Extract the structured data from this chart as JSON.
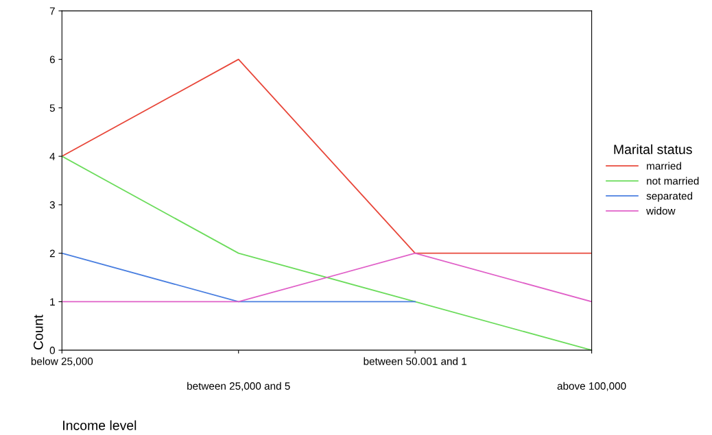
{
  "chart_data": {
    "type": "line",
    "xlabel": "Income level",
    "ylabel": "Count",
    "legend_title": "Marital status",
    "categories": [
      "below 25,000",
      "between 25,000 and 5",
      "between 50.001 and 1",
      "above 100,000"
    ],
    "series": [
      {
        "name": "married",
        "color": "#e8473a",
        "values": [
          4,
          6,
          2,
          2
        ]
      },
      {
        "name": "not married",
        "color": "#6cdc5c",
        "values": [
          4,
          2,
          1,
          0
        ]
      },
      {
        "name": "separated",
        "color": "#4a7fe0",
        "values": [
          2,
          1,
          1,
          null
        ]
      },
      {
        "name": "widow",
        "color": "#e060c8",
        "values": [
          1,
          1,
          2,
          1
        ]
      }
    ],
    "ylim": [
      0,
      7
    ],
    "yticks": [
      0,
      1,
      2,
      3,
      4,
      5,
      6,
      7
    ],
    "grid": false,
    "legend": "right",
    "marker": "none",
    "line_style": "solid"
  }
}
